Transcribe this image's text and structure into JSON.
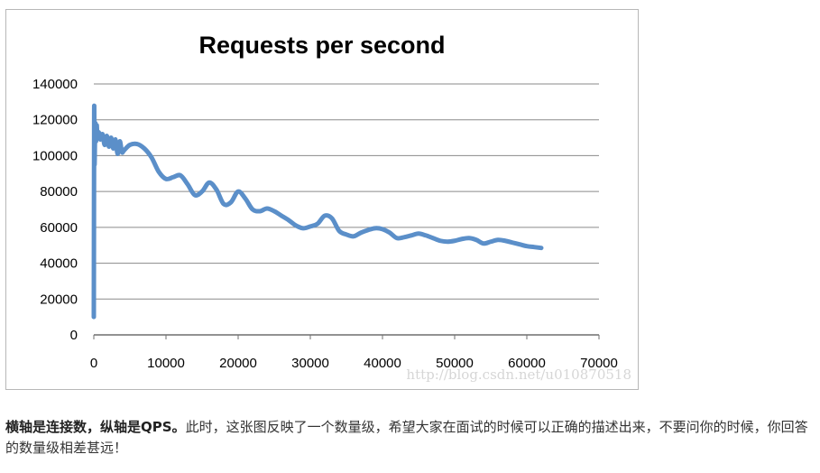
{
  "chart_data": {
    "type": "line",
    "title": "Requests per second",
    "xlabel": "",
    "ylabel": "",
    "xlim": [
      0,
      70000
    ],
    "ylim": [
      0,
      140000
    ],
    "x_ticks": [
      "0",
      "10000",
      "20000",
      "30000",
      "40000",
      "50000",
      "60000",
      "70000"
    ],
    "y_ticks": [
      "0",
      "20000",
      "40000",
      "60000",
      "80000",
      "100000",
      "120000",
      "140000"
    ],
    "grid": "horizontal",
    "legend": "none",
    "series": [
      {
        "color": "#5b8fc9",
        "x": [
          0,
          50,
          100,
          200,
          300,
          400,
          500,
          700,
          900,
          1200,
          1500,
          1800,
          2100,
          2400,
          2700,
          3000,
          3300,
          3600,
          3900,
          4200,
          5000,
          6000,
          7000,
          8000,
          9000,
          10000,
          11000,
          12000,
          13000,
          14000,
          15000,
          16000,
          17000,
          18000,
          19000,
          20000,
          21000,
          22000,
          23000,
          24000,
          25000,
          26000,
          27000,
          28000,
          29000,
          30000,
          31000,
          32000,
          33000,
          34000,
          35000,
          36000,
          37000,
          38000,
          39000,
          40000,
          41000,
          42000,
          43000,
          44000,
          45000,
          46000,
          47000,
          48000,
          49000,
          50000,
          51000,
          52000,
          53000,
          54000,
          55000,
          56000,
          57000,
          58000,
          59000,
          60000,
          61000,
          62000
        ],
        "values": [
          10000,
          125000,
          95000,
          118000,
          108000,
          117000,
          110000,
          113000,
          109000,
          112000,
          106000,
          111000,
          105000,
          110000,
          104000,
          109000,
          101000,
          108000,
          102000,
          103000,
          106000,
          106500,
          104000,
          99000,
          91000,
          87000,
          88000,
          89000,
          84000,
          78000,
          80000,
          85000,
          81000,
          73000,
          74000,
          80000,
          76000,
          70000,
          69000,
          70500,
          69000,
          66500,
          64000,
          61000,
          59500,
          60500,
          62000,
          66500,
          65000,
          58000,
          56000,
          55000,
          57000,
          58500,
          59500,
          59000,
          57000,
          54000,
          54500,
          55500,
          56500,
          55500,
          54000,
          52500,
          52000,
          52500,
          53500,
          54000,
          53000,
          51000,
          52000,
          53000,
          52500,
          51500,
          50500,
          49500,
          49000,
          48500
        ]
      }
    ]
  },
  "watermark": "http://blog.csdn.net/u010870518",
  "caption": {
    "bold_text": "横轴是连接数，纵轴是QPS。",
    "text": "此时，这张图反映了一个数量级，希望大家在面试的时候可以正确的描述出来，不要问你的时候，你回答的数量级相差甚远！"
  },
  "colors": {
    "line": "#5b8fc9",
    "grid": "#8a8a8a",
    "text": "#000000",
    "watermark": "#d6d6d6"
  }
}
